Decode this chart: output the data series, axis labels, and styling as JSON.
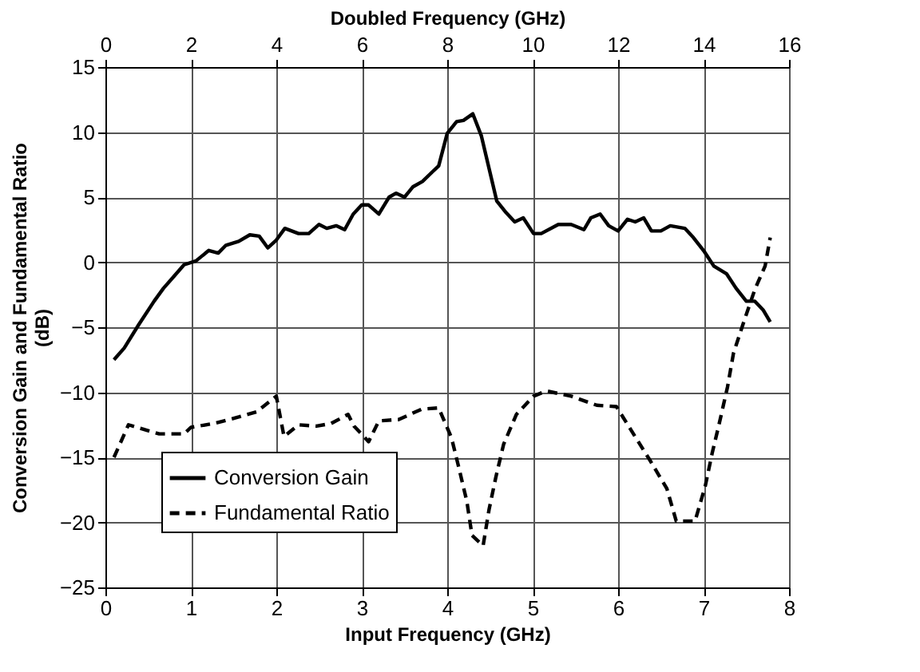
{
  "chart_data": {
    "type": "line",
    "xlabel": "Input Frequency (GHz)",
    "ylabel": "Conversion Gain and Fundamental Ratio (dB)",
    "x2label": "Doubled Frequency (GHz)",
    "xlim": [
      0,
      8
    ],
    "xticks": [
      0,
      1,
      2,
      3,
      4,
      5,
      6,
      7,
      8
    ],
    "x2lim": [
      0,
      16
    ],
    "x2ticks": [
      0,
      2,
      4,
      6,
      8,
      10,
      12,
      14,
      16
    ],
    "ylim": [
      -25,
      15
    ],
    "yticks": [
      -25,
      -20,
      -15,
      -10,
      -5,
      0,
      5,
      10,
      15
    ],
    "grid": true,
    "legend": "bottom left",
    "series": [
      {
        "name": "Conversion Gain",
        "color": "#000000",
        "line_style": "solid",
        "x": [
          0.1,
          0.22,
          0.39,
          0.57,
          0.68,
          0.8,
          0.92,
          1.06,
          1.21,
          1.32,
          1.41,
          1.56,
          1.69,
          1.8,
          1.9,
          2.0,
          2.1,
          2.26,
          2.38,
          2.5,
          2.59,
          2.7,
          2.8,
          2.9,
          3.0,
          3.08,
          3.2,
          3.32,
          3.4,
          3.5,
          3.6,
          3.71,
          3.82,
          3.9,
          4.0,
          4.11,
          4.19,
          4.3,
          4.4,
          4.49,
          4.58,
          4.69,
          4.79,
          4.89,
          5.01,
          5.1,
          5.3,
          5.45,
          5.6,
          5.68,
          5.79,
          5.89,
          6.0,
          6.11,
          6.2,
          6.3,
          6.39,
          6.5,
          6.61,
          6.78,
          6.88,
          7.01,
          7.12,
          7.27,
          7.38,
          7.5,
          7.6,
          7.7,
          7.78
        ],
        "values": [
          -7.5,
          -6.6,
          -4.8,
          -3.0,
          -2.0,
          -1.1,
          -0.2,
          0.1,
          0.9,
          0.7,
          1.3,
          1.6,
          2.1,
          2.0,
          1.1,
          1.7,
          2.6,
          2.2,
          2.2,
          2.9,
          2.6,
          2.8,
          2.5,
          3.7,
          4.4,
          4.4,
          3.7,
          5.0,
          5.3,
          5.0,
          5.8,
          6.2,
          6.9,
          7.4,
          9.9,
          10.8,
          10.9,
          11.4,
          9.7,
          7.2,
          4.7,
          3.8,
          3.1,
          3.4,
          2.2,
          2.2,
          2.9,
          2.9,
          2.5,
          3.4,
          3.7,
          2.8,
          2.4,
          3.3,
          3.1,
          3.4,
          2.4,
          2.4,
          2.8,
          2.6,
          1.9,
          0.8,
          -0.3,
          -0.9,
          -2.0,
          -3.0,
          -3.0,
          -3.7,
          -4.6
        ]
      },
      {
        "name": "Fundamental Ratio",
        "color": "#000000",
        "line_style": "dashed",
        "x": [
          0.1,
          0.27,
          0.63,
          0.92,
          1.0,
          1.27,
          1.56,
          1.77,
          2.0,
          2.09,
          2.26,
          2.47,
          2.64,
          2.84,
          2.91,
          3.08,
          3.2,
          3.43,
          3.7,
          3.9,
          4.05,
          4.14,
          4.23,
          4.29,
          4.42,
          4.49,
          4.57,
          4.66,
          4.81,
          5.01,
          5.16,
          5.45,
          5.75,
          5.98,
          6.16,
          6.37,
          6.57,
          6.68,
          6.9,
          7.02,
          7.1,
          7.18,
          7.28,
          7.35,
          7.47,
          7.6,
          7.72,
          7.78
        ],
        "values": [
          -15.0,
          -12.5,
          -13.2,
          -13.2,
          -12.7,
          -12.4,
          -11.9,
          -11.5,
          -10.3,
          -13.4,
          -12.5,
          -12.6,
          -12.4,
          -11.7,
          -12.6,
          -13.8,
          -12.2,
          -12.1,
          -11.3,
          -11.2,
          -13.5,
          -15.9,
          -18.4,
          -21.0,
          -21.8,
          -19.0,
          -16.5,
          -14.0,
          -11.7,
          -10.3,
          -9.9,
          -10.3,
          -11.0,
          -11.1,
          -13.0,
          -15.2,
          -17.4,
          -19.9,
          -19.9,
          -17.2,
          -14.7,
          -12.5,
          -9.6,
          -7.0,
          -4.6,
          -2.1,
          -0.3,
          1.9
        ]
      }
    ]
  }
}
